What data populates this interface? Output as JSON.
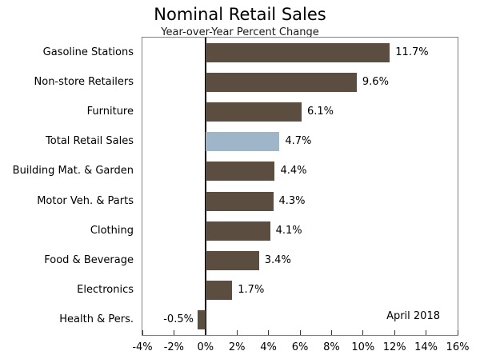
{
  "chart_data": {
    "type": "bar",
    "orientation": "horizontal",
    "title": "Nominal Retail Sales",
    "subtitle": "Year-over-Year Percent Change",
    "annotation": "April 2018",
    "categories": [
      "Gasoline Stations",
      "Non-store Retailers",
      "Furniture",
      "Total Retail Sales",
      "Building Mat. & Garden",
      "Motor Veh. & Parts",
      "Clothing",
      "Food & Beverage",
      "Electronics",
      "Health & Pers."
    ],
    "values": [
      11.7,
      9.6,
      6.1,
      4.7,
      4.4,
      4.3,
      4.1,
      3.4,
      1.7,
      -0.5
    ],
    "value_labels": [
      "11.7%",
      "9.6%",
      "6.1%",
      "4.7%",
      "4.4%",
      "4.3%",
      "4.1%",
      "3.4%",
      "1.7%",
      "-0.5%"
    ],
    "highlight_index": 3,
    "xlim": [
      -4,
      16
    ],
    "xticks": [
      -4,
      -2,
      0,
      2,
      4,
      6,
      8,
      10,
      12,
      14,
      16
    ],
    "xtick_labels": [
      "-4%",
      "-2%",
      "0%",
      "2%",
      "4%",
      "6%",
      "8%",
      "10%",
      "12%",
      "14%",
      "16%"
    ],
    "grid": false,
    "legend": "none",
    "colors": {
      "bar": "#5c4d41",
      "highlight": "#9fb6c9",
      "zero_line": "#000000",
      "border": "#808080",
      "text": "#000000",
      "background": "#ffffff"
    }
  }
}
